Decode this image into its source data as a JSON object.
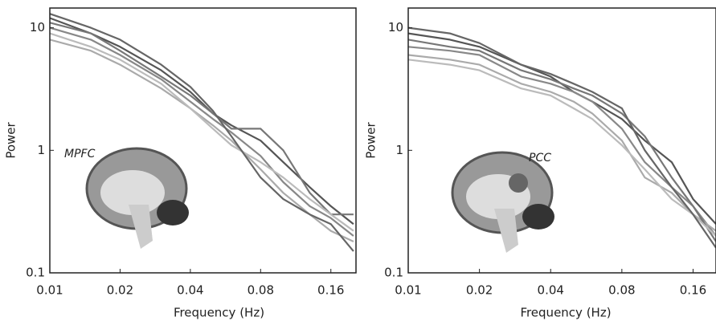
{
  "chart_data": [
    {
      "type": "line",
      "annotation": "MPFC",
      "xlabel": "Frequency (Hz)",
      "ylabel": "Power",
      "xscale": "log",
      "yscale": "log",
      "xlim": [
        0.01,
        0.205
      ],
      "xticks": [
        0.01,
        0.02,
        0.04,
        0.08,
        0.16
      ],
      "ylim": [
        0.1,
        14.5
      ],
      "yticks": [
        0.1,
        1,
        10
      ],
      "x": [
        0.01,
        0.015,
        0.02,
        0.03,
        0.04,
        0.05,
        0.06,
        0.08,
        0.1,
        0.13,
        0.16,
        0.2
      ],
      "series": [
        {
          "color": "#555555",
          "values": [
            12,
            9,
            7,
            4.5,
            3,
            2,
            1.6,
            1.2,
            0.8,
            0.5,
            0.35,
            0.25
          ]
        },
        {
          "color": "#888888",
          "values": [
            10,
            8,
            6,
            3.8,
            2.5,
            1.8,
            1.4,
            0.9,
            0.55,
            0.35,
            0.28,
            0.2
          ]
        },
        {
          "color": "#aaaaaa",
          "values": [
            8,
            6.5,
            5,
            3.2,
            2.2,
            1.6,
            1.2,
            0.7,
            0.45,
            0.3,
            0.22,
            0.18
          ]
        },
        {
          "color": "#777777",
          "values": [
            11,
            9,
            6.5,
            4,
            2.8,
            2,
            1.5,
            1.5,
            1,
            0.45,
            0.3,
            0.3
          ]
        },
        {
          "color": "#bbbbbb",
          "values": [
            9,
            7,
            5.5,
            3.5,
            2.2,
            1.5,
            1.1,
            0.8,
            0.6,
            0.4,
            0.3,
            0.22
          ]
        },
        {
          "color": "#666666",
          "values": [
            13,
            10,
            8,
            5,
            3.3,
            2.1,
            1.3,
            0.6,
            0.4,
            0.3,
            0.25,
            0.15
          ]
        }
      ]
    },
    {
      "type": "line",
      "annotation": "PCC",
      "xlabel": "Frequency (Hz)",
      "ylabel": "Power",
      "xscale": "log",
      "yscale": "log",
      "xlim": [
        0.01,
        0.2
      ],
      "xticks": [
        0.01,
        0.02,
        0.04,
        0.08,
        0.16
      ],
      "ylim": [
        0.1,
        14.5
      ],
      "yticks": [
        0.1,
        1,
        10
      ],
      "x": [
        0.01,
        0.015,
        0.02,
        0.03,
        0.04,
        0.05,
        0.06,
        0.08,
        0.1,
        0.13,
        0.16,
        0.2
      ],
      "series": [
        {
          "color": "#555555",
          "values": [
            9,
            8,
            7,
            5,
            4,
            3,
            2.5,
            1.8,
            1.2,
            0.8,
            0.4,
            0.25
          ]
        },
        {
          "color": "#888888",
          "values": [
            7,
            6.5,
            6,
            4,
            3.5,
            3,
            2.5,
            1.5,
            0.8,
            0.5,
            0.35,
            0.2
          ]
        },
        {
          "color": "#aaaaaa",
          "values": [
            6,
            5.5,
            5,
            3.5,
            3,
            2.5,
            2,
            1.2,
            0.6,
            0.45,
            0.3,
            0.22
          ]
        },
        {
          "color": "#777777",
          "values": [
            8,
            7,
            6.5,
            4.5,
            3.8,
            3.2,
            2.8,
            2,
            1.3,
            0.6,
            0.35,
            0.18
          ]
        },
        {
          "color": "#bbbbbb",
          "values": [
            5.5,
            5,
            4.5,
            3.2,
            2.8,
            2.2,
            1.8,
            1.1,
            0.7,
            0.4,
            0.3,
            0.2
          ]
        },
        {
          "color": "#666666",
          "values": [
            10,
            9,
            7.5,
            5,
            4.2,
            3.5,
            3,
            2.2,
            1,
            0.5,
            0.3,
            0.16
          ]
        }
      ]
    }
  ]
}
